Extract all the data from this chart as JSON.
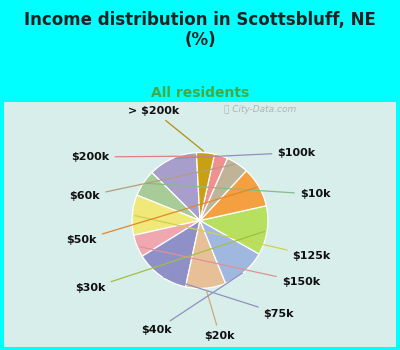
{
  "title": "Income distribution in Scottsbluff, NE\n(%)",
  "subtitle": "All residents",
  "background_color": "#00FFFF",
  "chart_bg_top": "#d4efe8",
  "chart_bg_bottom": "#e8f5f0",
  "labels": [
    "$100k",
    "$10k",
    "$125k",
    "$150k",
    "$75k",
    "$20k",
    "$40k",
    "$30k",
    "$50k",
    "$60k",
    "$200k",
    "> $200k"
  ],
  "values": [
    11,
    6,
    9,
    5,
    12,
    9,
    10,
    11,
    9,
    5,
    3,
    4
  ],
  "colors": [
    "#a89ecc",
    "#a8cc98",
    "#f0e878",
    "#f0a8b0",
    "#9090c8",
    "#e8c098",
    "#a0b8e0",
    "#b8e060",
    "#f4a040",
    "#c0b498",
    "#f09090",
    "#c8a010"
  ],
  "wedge_edge_color": "white",
  "label_fontsize": 8,
  "title_fontsize": 12,
  "subtitle_fontsize": 10,
  "subtitle_color": "#44aa44",
  "title_color": "#222222",
  "startangle": 93,
  "label_color": "#111111",
  "line_color_map": {
    "$100k": "#9090bb",
    "$10k": "#88bb88",
    "$125k": "#d0d050",
    "$150k": "#e09098",
    "$75k": "#9090bb",
    "$20k": "#d0a878",
    "$40k": "#9090bb",
    "$30k": "#a0c040",
    "$50k": "#e08830",
    "$60k": "#b0a080",
    "$200k": "#e08080",
    "> $200k": "#b09010"
  }
}
